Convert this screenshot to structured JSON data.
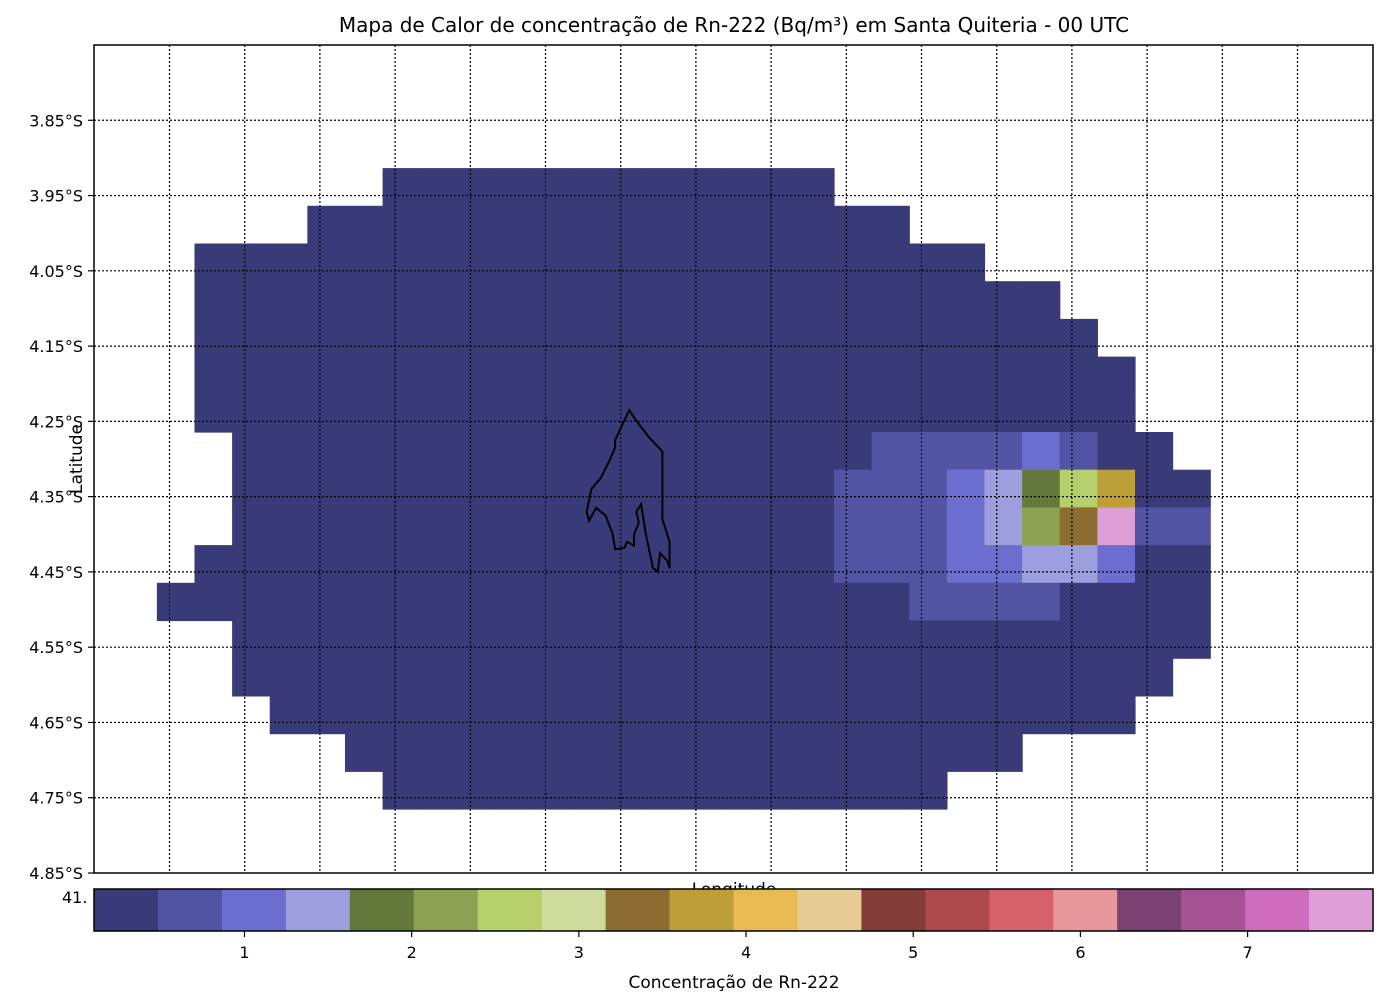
{
  "chart_data": {
    "type": "heatmap",
    "title": "Mapa de Calor de concentração de Rn-222 (Bq/m³) em Santa Quiteria - 00 UTC",
    "xlabel": "Longitude",
    "ylabel": "Latitude",
    "colorbar_label": "Concentração de Rn-222",
    "colorbar_ticks": [
      "1",
      "2",
      "3",
      "4",
      "5",
      "6",
      "7"
    ],
    "colorbar_range": [
      0.1,
      7.75
    ],
    "colorbar_offset_text": "41.",
    "yticks": [
      "3.85°S",
      "3.95°S",
      "4.05°S",
      "4.15°S",
      "4.25°S",
      "4.35°S",
      "4.45°S",
      "4.55°S",
      "4.65°S",
      "4.75°S",
      "4.85°S"
    ],
    "ylim": [
      -4.85,
      -3.75
    ],
    "grid": true,
    "colormap": [
      "#393b79",
      "#5254a3",
      "#6b6ecf",
      "#9c9ede",
      "#637939",
      "#8ca252",
      "#b5cf6b",
      "#cedb9c",
      "#8c6d31",
      "#bd9e39",
      "#e7ba52",
      "#e7cb94",
      "#843c39",
      "#ad494a",
      "#d6616b",
      "#e7969c",
      "#7b4173",
      "#a55194",
      "#ce6dbd",
      "#de9ed6"
    ],
    "grid_cells": {
      "background_color_index": 0,
      "background_value": 0.3,
      "row_extents_description": "row, first column, last column of the nonzero area",
      "rows": [
        [
          3,
          9,
          20
        ],
        [
          4,
          7,
          22
        ],
        [
          5,
          4,
          24
        ],
        [
          6,
          4,
          26
        ],
        [
          7,
          4,
          27
        ],
        [
          8,
          4,
          28
        ],
        [
          9,
          4,
          28
        ],
        [
          10,
          5,
          29
        ],
        [
          11,
          5,
          30
        ],
        [
          12,
          5,
          30
        ],
        [
          13,
          4,
          30
        ],
        [
          14,
          3,
          30
        ],
        [
          15,
          5,
          30
        ],
        [
          16,
          5,
          29
        ],
        [
          17,
          6,
          28
        ],
        [
          18,
          8,
          25
        ],
        [
          19,
          9,
          23
        ]
      ],
      "hot_cells": [
        [
          10,
          22,
          1,
          1.0
        ],
        [
          10,
          23,
          1,
          1.0
        ],
        [
          10,
          24,
          1,
          1.0
        ],
        [
          10,
          25,
          1,
          1.0
        ],
        [
          10,
          26,
          2,
          1.3
        ],
        [
          10,
          27,
          1,
          1.0
        ],
        [
          11,
          21,
          1,
          1.0
        ],
        [
          11,
          22,
          1,
          1.0
        ],
        [
          11,
          23,
          1,
          1.0
        ],
        [
          11,
          24,
          2,
          1.3
        ],
        [
          11,
          25,
          3,
          1.6
        ],
        [
          11,
          26,
          4,
          2.0
        ],
        [
          11,
          27,
          6,
          2.8
        ],
        [
          11,
          28,
          9,
          4.0
        ],
        [
          12,
          21,
          1,
          1.0
        ],
        [
          12,
          22,
          1,
          1.0
        ],
        [
          12,
          23,
          1,
          1.0
        ],
        [
          12,
          24,
          2,
          1.3
        ],
        [
          12,
          25,
          3,
          1.6
        ],
        [
          12,
          26,
          5,
          2.3
        ],
        [
          12,
          27,
          8,
          3.5
        ],
        [
          12,
          28,
          19,
          7.6
        ],
        [
          12,
          29,
          1,
          1.0
        ],
        [
          12,
          30,
          1,
          1.0
        ],
        [
          13,
          21,
          1,
          1.0
        ],
        [
          13,
          22,
          1,
          1.0
        ],
        [
          13,
          23,
          1,
          1.0
        ],
        [
          13,
          24,
          2,
          1.3
        ],
        [
          13,
          25,
          2,
          1.3
        ],
        [
          13,
          26,
          3,
          1.6
        ],
        [
          13,
          27,
          3,
          1.6
        ],
        [
          13,
          28,
          2,
          1.3
        ],
        [
          14,
          23,
          1,
          1.0
        ],
        [
          14,
          24,
          1,
          1.0
        ],
        [
          14,
          25,
          1,
          1.0
        ],
        [
          14,
          26,
          1,
          1.0
        ]
      ]
    },
    "outline_path": [
      [
        -39.9,
        -4.285
      ],
      [
        -39.91,
        -4.3
      ],
      [
        -39.93,
        -4.325
      ],
      [
        -39.95,
        -4.34
      ],
      [
        -39.96,
        -4.37
      ],
      [
        -39.955,
        -4.382
      ],
      [
        -39.94,
        -4.365
      ],
      [
        -39.92,
        -4.375
      ],
      [
        -39.905,
        -4.4
      ],
      [
        -39.9,
        -4.42
      ],
      [
        -39.88,
        -4.418
      ],
      [
        -39.875,
        -4.41
      ],
      [
        -39.86,
        -4.415
      ],
      [
        -39.86,
        -4.4
      ],
      [
        -39.85,
        -4.385
      ],
      [
        -39.855,
        -4.37
      ],
      [
        -39.845,
        -4.36
      ],
      [
        -39.835,
        -4.4
      ],
      [
        -39.82,
        -4.445
      ],
      [
        -39.81,
        -4.45
      ],
      [
        -39.805,
        -4.425
      ],
      [
        -39.79,
        -4.435
      ],
      [
        -39.785,
        -4.445
      ],
      [
        -39.785,
        -4.41
      ],
      [
        -39.8,
        -4.38
      ],
      [
        -39.8,
        -4.29
      ],
      [
        -39.83,
        -4.27
      ],
      [
        -39.86,
        -4.245
      ],
      [
        -39.87,
        -4.235
      ],
      [
        -39.885,
        -4.255
      ],
      [
        -39.9,
        -4.275
      ]
    ]
  }
}
